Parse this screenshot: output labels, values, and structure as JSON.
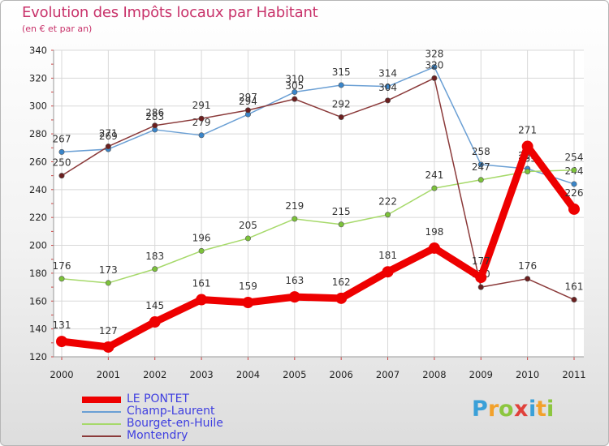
{
  "header": {
    "title": "Evolution des Impôts locaux par Habitant",
    "subtitle": "(en € et par an)"
  },
  "brand": {
    "letters": [
      {
        "char": "P",
        "color": "#3aa0d8"
      },
      {
        "char": "r",
        "color": "#f2a12b"
      },
      {
        "char": "o",
        "color": "#8cc63f"
      },
      {
        "char": "x",
        "color": "#e0413b"
      },
      {
        "char": "i",
        "color": "#3aa0d8"
      },
      {
        "char": "t",
        "color": "#f2a12b"
      },
      {
        "char": "i",
        "color": "#8cc63f"
      }
    ]
  },
  "chart_data": {
    "type": "line",
    "title": "Evolution des Impôts locaux par Habitant",
    "subtitle": "(en € et par an)",
    "xlabel": "",
    "ylabel": "",
    "x": [
      "2000",
      "2001",
      "2002",
      "2003",
      "2004",
      "2005",
      "2006",
      "2007",
      "2008",
      "2009",
      "2010",
      "2011"
    ],
    "ylim": [
      120,
      340
    ],
    "yticks": [
      120,
      140,
      160,
      180,
      200,
      220,
      240,
      260,
      280,
      300,
      320,
      340
    ],
    "grid": true,
    "legend_position": "bottom-left",
    "series": [
      {
        "name": "LE PONTET",
        "color": "#ee0000",
        "values": [
          131,
          127,
          145,
          161,
          159,
          163,
          162,
          181,
          198,
          177,
          271,
          226
        ]
      },
      {
        "name": "Champ-Laurent",
        "color": "#6a9fd4",
        "marker_color": "#3a85c9",
        "values": [
          267,
          269,
          283,
          279,
          294,
          310,
          315,
          314,
          328,
          258,
          255,
          244
        ]
      },
      {
        "name": "Bourget-en-Huile",
        "color": "#a6d96a",
        "marker_color": "#7cc23a",
        "values": [
          176,
          173,
          183,
          196,
          205,
          219,
          215,
          222,
          241,
          247,
          253,
          254
        ]
      },
      {
        "name": "Montendry",
        "color": "#8b3a3a",
        "marker_color": "#6b1f1f",
        "values": [
          250,
          271,
          286,
          291,
          297,
          305,
          292,
          304,
          320,
          170,
          176,
          161
        ]
      }
    ]
  }
}
